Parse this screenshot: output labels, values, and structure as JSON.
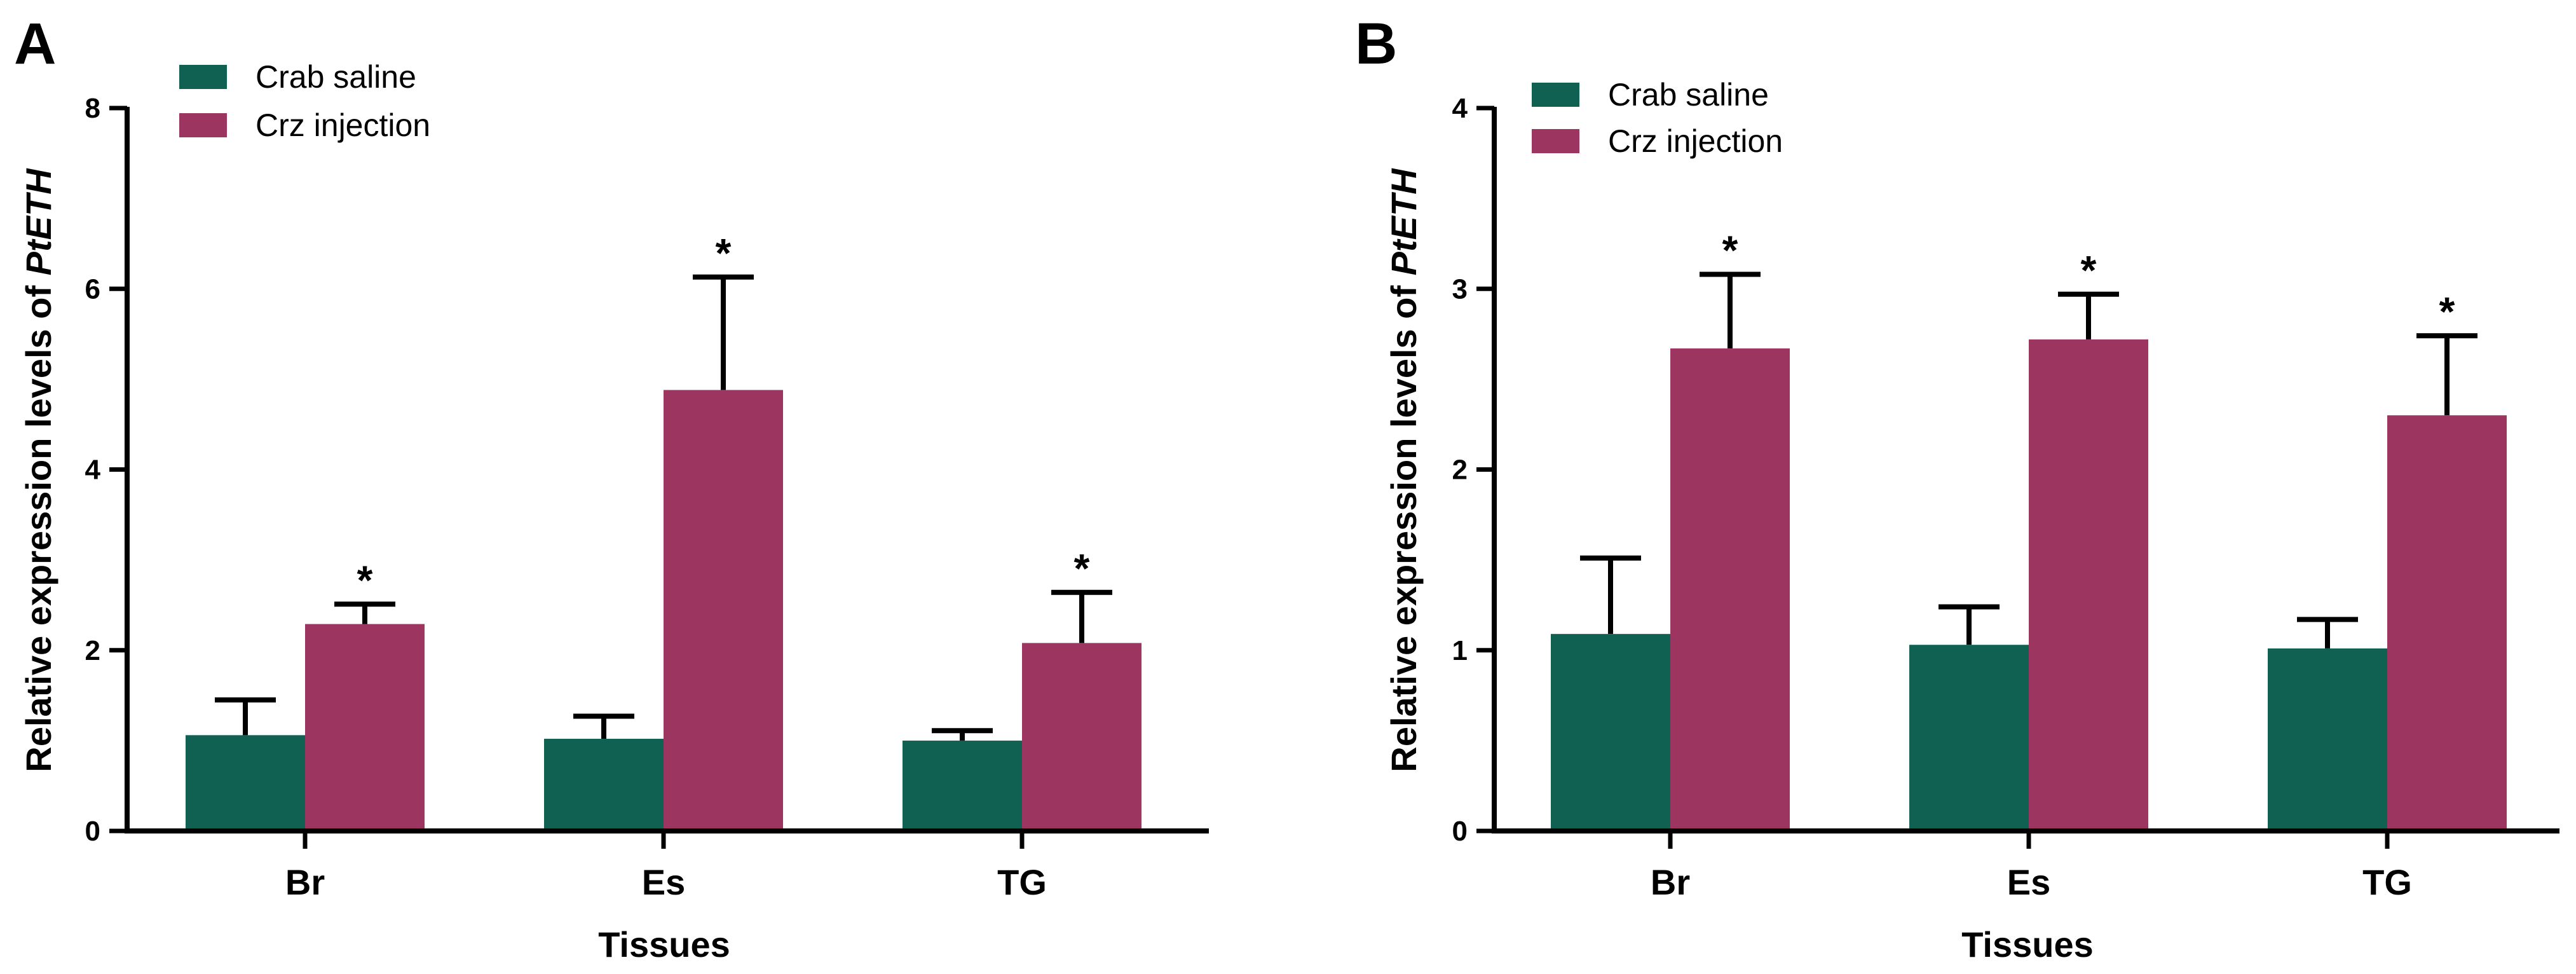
{
  "colors": {
    "crab_saline": "#116152",
    "crz_injection": "#9c3661",
    "axis": "#000000",
    "background": "#ffffff"
  },
  "chart_data": [
    {
      "panel": "A",
      "type": "bar",
      "categories": [
        "Br",
        "Es",
        "TG"
      ],
      "xlabel": "Tissues",
      "ylabel_prefix": "Relative expression levels of ",
      "ylabel_gene": "PtETH",
      "ylim": [
        0,
        8
      ],
      "yticks": [
        0,
        2,
        4,
        6,
        8
      ],
      "grid": false,
      "legend_position": "top-left",
      "series": [
        {
          "name": "Crab saline",
          "color": "#116152",
          "values": [
            1.06,
            1.02,
            1.0
          ],
          "errors": [
            0.39,
            0.25,
            0.11
          ],
          "significance": [
            "",
            "",
            ""
          ]
        },
        {
          "name": "Crz injection",
          "color": "#9c3661",
          "values": [
            2.29,
            4.88,
            2.08
          ],
          "errors": [
            0.22,
            1.25,
            0.56
          ],
          "significance": [
            "*",
            "*",
            "*"
          ]
        }
      ]
    },
    {
      "panel": "B",
      "type": "bar",
      "categories": [
        "Br",
        "Es",
        "TG"
      ],
      "xlabel": "Tissues",
      "ylabel_prefix": "Relative expression levels of ",
      "ylabel_gene": "PtETH",
      "ylim": [
        0,
        4
      ],
      "yticks": [
        0,
        1,
        2,
        3,
        4
      ],
      "grid": false,
      "legend_position": "top-left",
      "series": [
        {
          "name": "Crab saline",
          "color": "#116152",
          "values": [
            1.09,
            1.03,
            1.01
          ],
          "errors": [
            0.42,
            0.21,
            0.16
          ],
          "significance": [
            "",
            "",
            ""
          ]
        },
        {
          "name": "Crz injection",
          "color": "#9c3661",
          "values": [
            2.67,
            2.72,
            2.3
          ],
          "errors": [
            0.41,
            0.25,
            0.44
          ],
          "significance": [
            "*",
            "*",
            "*"
          ]
        }
      ]
    }
  ]
}
